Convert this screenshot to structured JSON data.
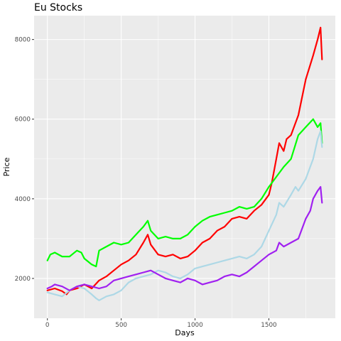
{
  "chart_data": {
    "type": "line",
    "title": "Eu Stocks",
    "xlabel": "Days",
    "ylabel": "Price",
    "xlim": [
      -90,
      1950
    ],
    "ylim": [
      1000,
      8600
    ],
    "x_ticks": [
      0,
      500,
      1000,
      1500
    ],
    "y_ticks": [
      2000,
      4000,
      6000,
      8000
    ],
    "x_tick_labels": [
      "0",
      "500",
      "1000",
      "1500"
    ],
    "y_tick_labels": [
      "2000",
      "4000",
      "6000",
      "8000"
    ],
    "grid": true,
    "legend": "none",
    "background": "#EBEBEB",
    "series": [
      {
        "color": "#FF0000",
        "x": [
          0,
          50,
          100,
          130,
          150,
          200,
          250,
          300,
          350,
          400,
          450,
          500,
          550,
          600,
          650,
          680,
          700,
          750,
          800,
          850,
          900,
          950,
          1000,
          1050,
          1100,
          1150,
          1200,
          1250,
          1300,
          1350,
          1400,
          1450,
          1500,
          1520,
          1550,
          1570,
          1600,
          1620,
          1650,
          1700,
          1750,
          1800,
          1830,
          1850,
          1860
        ],
        "values": [
          1700,
          1750,
          1680,
          1600,
          1700,
          1750,
          1850,
          1750,
          1950,
          2050,
          2200,
          2350,
          2450,
          2600,
          2900,
          3100,
          2850,
          2600,
          2550,
          2600,
          2500,
          2550,
          2700,
          2900,
          3000,
          3200,
          3300,
          3500,
          3550,
          3500,
          3700,
          3850,
          4100,
          4400,
          5000,
          5400,
          5200,
          5500,
          5600,
          6100,
          7000,
          7600,
          8000,
          8300,
          7500
        ]
      },
      {
        "color": "#00FF00",
        "x": [
          0,
          20,
          50,
          100,
          150,
          200,
          230,
          250,
          300,
          330,
          350,
          400,
          450,
          500,
          550,
          600,
          650,
          680,
          700,
          750,
          800,
          850,
          900,
          950,
          1000,
          1050,
          1100,
          1150,
          1200,
          1250,
          1300,
          1350,
          1400,
          1450,
          1500,
          1550,
          1600,
          1650,
          1700,
          1750,
          1800,
          1830,
          1850,
          1860
        ],
        "values": [
          2450,
          2600,
          2650,
          2550,
          2550,
          2700,
          2650,
          2500,
          2350,
          2300,
          2700,
          2800,
          2900,
          2850,
          2900,
          3100,
          3300,
          3450,
          3200,
          3000,
          3050,
          3000,
          3000,
          3100,
          3300,
          3450,
          3550,
          3600,
          3650,
          3700,
          3800,
          3750,
          3800,
          4000,
          4300,
          4550,
          4800,
          5000,
          5600,
          5800,
          6000,
          5800,
          5900,
          5400
        ]
      },
      {
        "color": "#ADD8E6",
        "x": [
          0,
          50,
          100,
          150,
          200,
          250,
          300,
          330,
          350,
          400,
          450,
          500,
          550,
          600,
          650,
          700,
          750,
          800,
          850,
          900,
          950,
          1000,
          1050,
          1100,
          1150,
          1200,
          1250,
          1300,
          1350,
          1400,
          1450,
          1500,
          1550,
          1570,
          1600,
          1650,
          1680,
          1700,
          1750,
          1800,
          1830,
          1850,
          1860
        ],
        "values": [
          1650,
          1600,
          1550,
          1700,
          1800,
          1750,
          1600,
          1500,
          1450,
          1550,
          1600,
          1700,
          1900,
          2000,
          2050,
          2100,
          2200,
          2150,
          2050,
          2000,
          2100,
          2250,
          2300,
          2350,
          2400,
          2450,
          2500,
          2550,
          2500,
          2600,
          2800,
          3200,
          3600,
          3900,
          3800,
          4100,
          4300,
          4200,
          4500,
          5000,
          5500,
          5700,
          5300
        ]
      },
      {
        "color": "#A020F0",
        "x": [
          0,
          30,
          50,
          100,
          150,
          200,
          250,
          300,
          350,
          400,
          450,
          500,
          550,
          600,
          650,
          700,
          750,
          800,
          850,
          900,
          950,
          1000,
          1050,
          1100,
          1150,
          1200,
          1250,
          1300,
          1350,
          1400,
          1450,
          1500,
          1550,
          1570,
          1600,
          1650,
          1700,
          1750,
          1780,
          1800,
          1830,
          1850,
          1860
        ],
        "values": [
          1750,
          1800,
          1850,
          1800,
          1700,
          1800,
          1850,
          1800,
          1750,
          1800,
          1950,
          2000,
          2050,
          2100,
          2150,
          2200,
          2100,
          2000,
          1950,
          1900,
          2000,
          1950,
          1850,
          1900,
          1950,
          2050,
          2100,
          2050,
          2150,
          2300,
          2450,
          2600,
          2700,
          2900,
          2800,
          2900,
          3000,
          3500,
          3700,
          4000,
          4200,
          4300,
          3900
        ]
      }
    ]
  }
}
